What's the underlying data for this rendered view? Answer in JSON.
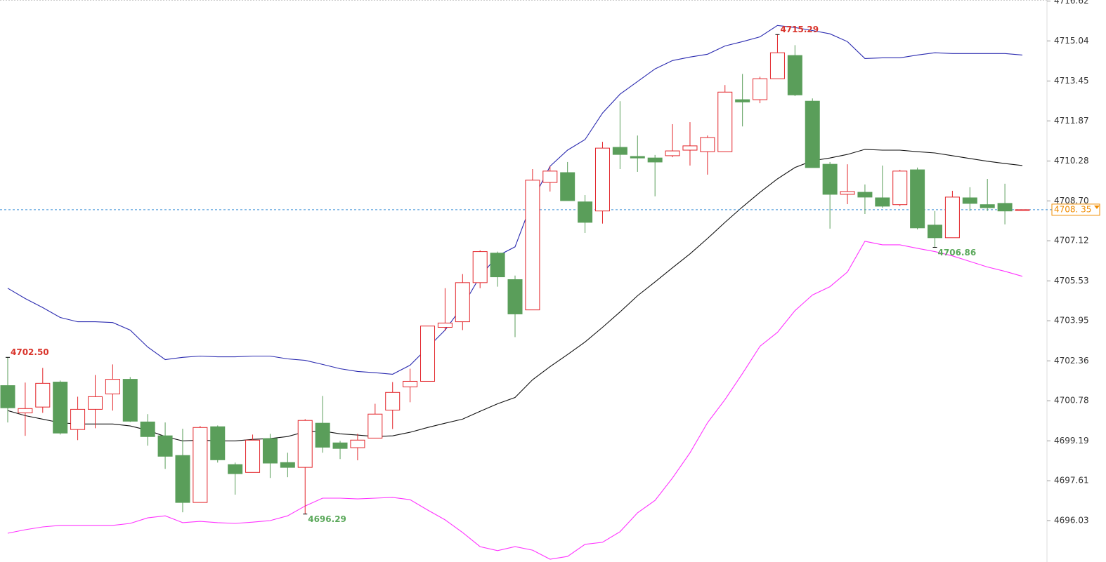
{
  "chart_data": {
    "type": "candlestick",
    "up_color": "#e3262b",
    "down_color": "#5a9e5a",
    "open": [
      4701.38,
      4700.3,
      4700.53,
      4701.52,
      4699.64,
      4700.44,
      4701.05,
      4701.63,
      4699.94,
      4699.39,
      4698.61,
      4696.75,
      4699.75,
      4698.25,
      4697.94,
      4699.28,
      4698.33,
      4698.14,
      4699.89,
      4699.11,
      4698.92,
      4699.3,
      4700.41,
      4701.33,
      4701.55,
      4703.69,
      4703.91,
      4705.46,
      4706.63,
      4705.58,
      4704.38,
      4709.43,
      4709.82,
      4708.66,
      4708.3,
      4710.82,
      4710.46,
      4710.4,
      4710.49,
      4710.71,
      4710.65,
      4710.65,
      4712.71,
      4712.71,
      4713.54,
      4714.46,
      4712.65,
      4710.15,
      4708.96,
      4709.04,
      4708.82,
      4708.55,
      4709.93,
      4707.74,
      4707.24,
      4708.82,
      4708.55,
      4708.6,
      4708.35
    ],
    "high": [
      4702.5,
      4701.5,
      4702.08,
      4701.58,
      4700.94,
      4701.8,
      4702.22,
      4701.72,
      4700.25,
      4699.92,
      4699.67,
      4699.78,
      4699.8,
      4698.33,
      4699.44,
      4699.47,
      4698.72,
      4700.05,
      4700.97,
      4699.19,
      4699.47,
      4700.66,
      4701.52,
      4702.05,
      4703.74,
      4705.24,
      4705.8,
      4706.74,
      4706.69,
      4705.74,
      4709.96,
      4710.07,
      4710.24,
      4708.93,
      4711.04,
      4712.65,
      4711.29,
      4710.52,
      4711.74,
      4711.82,
      4711.29,
      4713.29,
      4713.73,
      4713.62,
      4715.29,
      4714.87,
      4712.76,
      4710.24,
      4710.15,
      4709.35,
      4710.1,
      4709.93,
      4710.02,
      4708.3,
      4709.1,
      4709.24,
      4709.57,
      4709.38,
      4708.35
    ],
    "low": [
      4699.92,
      4699.39,
      4700.3,
      4699.44,
      4699.22,
      4699.69,
      4700.39,
      4699.94,
      4699.0,
      4698.08,
      4696.36,
      4696.75,
      4698.33,
      4697.06,
      4697.94,
      4697.72,
      4697.75,
      4696.29,
      4698.72,
      4698.47,
      4698.42,
      4699.3,
      4699.66,
      4700.72,
      4701.55,
      4703.55,
      4703.58,
      4705.24,
      4705.3,
      4703.3,
      4704.38,
      4709.07,
      4708.71,
      4707.43,
      4707.8,
      4709.96,
      4709.85,
      4708.88,
      4710.43,
      4710.1,
      4709.74,
      4710.65,
      4711.65,
      4712.57,
      4713.54,
      4712.85,
      4710.02,
      4707.6,
      4708.57,
      4708.18,
      4708.43,
      4708.49,
      4707.57,
      4706.86,
      4707.24,
      4708.3,
      4708.3,
      4707.77,
      4708.35
    ],
    "close": [
      4700.5,
      4700.47,
      4701.47,
      4699.5,
      4700.44,
      4700.94,
      4701.63,
      4699.97,
      4699.36,
      4698.58,
      4696.75,
      4699.72,
      4698.44,
      4697.89,
      4699.22,
      4698.31,
      4698.14,
      4700.0,
      4698.94,
      4698.89,
      4699.22,
      4700.25,
      4701.11,
      4701.55,
      4703.74,
      4703.86,
      4705.46,
      4706.69,
      4705.69,
      4704.22,
      4709.52,
      4709.88,
      4708.71,
      4707.85,
      4710.79,
      4710.54,
      4710.4,
      4710.24,
      4710.68,
      4710.88,
      4711.21,
      4713.01,
      4712.62,
      4713.54,
      4714.57,
      4712.9,
      4710.02,
      4708.96,
      4709.07,
      4708.85,
      4708.49,
      4709.88,
      4707.63,
      4707.24,
      4708.85,
      4708.6,
      4708.43,
      4708.3,
      4708.35
    ],
    "series": [
      {
        "color": "#2b2bb0",
        "values": [
          4705.24,
          4704.83,
          4704.47,
          4704.08,
          4703.91,
          4703.91,
          4703.88,
          4703.58,
          4702.91,
          4702.41,
          4702.5,
          4702.55,
          4702.52,
          4702.52,
          4702.55,
          4702.55,
          4702.44,
          4702.38,
          4702.22,
          4702.05,
          4701.94,
          4701.89,
          4701.83,
          4702.19,
          4702.88,
          4703.58,
          4704.52,
          4705.71,
          4706.52,
          4706.88,
          4708.71,
          4710.07,
          4710.71,
          4711.13,
          4712.18,
          4712.93,
          4713.43,
          4713.93,
          4714.26,
          4714.4,
          4714.51,
          4714.84,
          4715.01,
          4715.2,
          4715.65,
          4715.57,
          4715.45,
          4715.32,
          4715.01,
          4714.34,
          4714.37,
          4714.37,
          4714.48,
          4714.57,
          4714.54,
          4714.54,
          4714.54,
          4714.54,
          4714.48
        ]
      },
      {
        "color": "#111111",
        "values": [
          4700.39,
          4700.19,
          4700.05,
          4699.91,
          4699.86,
          4699.86,
          4699.86,
          4699.78,
          4699.61,
          4699.36,
          4699.19,
          4699.22,
          4699.19,
          4699.19,
          4699.25,
          4699.28,
          4699.36,
          4699.55,
          4699.58,
          4699.47,
          4699.42,
          4699.36,
          4699.39,
          4699.53,
          4699.72,
          4699.89,
          4700.05,
          4700.36,
          4700.66,
          4700.91,
          4701.61,
          4702.13,
          4702.61,
          4703.11,
          4703.69,
          4704.3,
          4704.94,
          4705.49,
          4706.05,
          4706.6,
          4707.21,
          4707.85,
          4708.46,
          4709.04,
          4709.57,
          4710.02,
          4710.29,
          4710.4,
          4710.54,
          4710.74,
          4710.71,
          4710.71,
          4710.65,
          4710.6,
          4710.49,
          4710.38,
          4710.27,
          4710.18,
          4710.1
        ]
      },
      {
        "color": "#ff33ff",
        "values": [
          4695.53,
          4695.67,
          4695.78,
          4695.84,
          4695.84,
          4695.84,
          4695.84,
          4695.92,
          4696.14,
          4696.22,
          4695.95,
          4696.0,
          4695.95,
          4695.92,
          4695.97,
          4696.03,
          4696.22,
          4696.61,
          4696.92,
          4696.92,
          4696.89,
          4696.92,
          4696.95,
          4696.86,
          4696.45,
          4696.06,
          4695.56,
          4695.0,
          4694.84,
          4695.0,
          4694.86,
          4694.5,
          4694.61,
          4695.09,
          4695.17,
          4695.59,
          4696.34,
          4696.83,
          4697.72,
          4698.72,
          4699.91,
          4700.83,
          4701.86,
          4702.94,
          4703.49,
          4704.35,
          4704.97,
          4705.3,
          4705.88,
          4707.1,
          4706.96,
          4706.96,
          4706.82,
          4706.69,
          4706.52,
          4706.3,
          4706.08,
          4705.91,
          4705.71
        ]
      }
    ],
    "annotations": [
      "4702.50",
      "4715.29",
      "4696.29",
      "4706.86"
    ],
    "last_price": {
      "value": 4708.35,
      "label": "4708. 35"
    },
    "last_price_color": "#f08c00",
    "ylim": [
      4694.39,
      4716.66
    ],
    "yticks": [
      4716.62,
      4715.04,
      4713.45,
      4711.87,
      4710.28,
      {
        "value": 4708.7,
        "label": "4708.70"
      },
      4707.12,
      4705.53,
      4703.95,
      4702.36,
      4700.78,
      4699.19,
      4697.61,
      4696.03
    ]
  }
}
